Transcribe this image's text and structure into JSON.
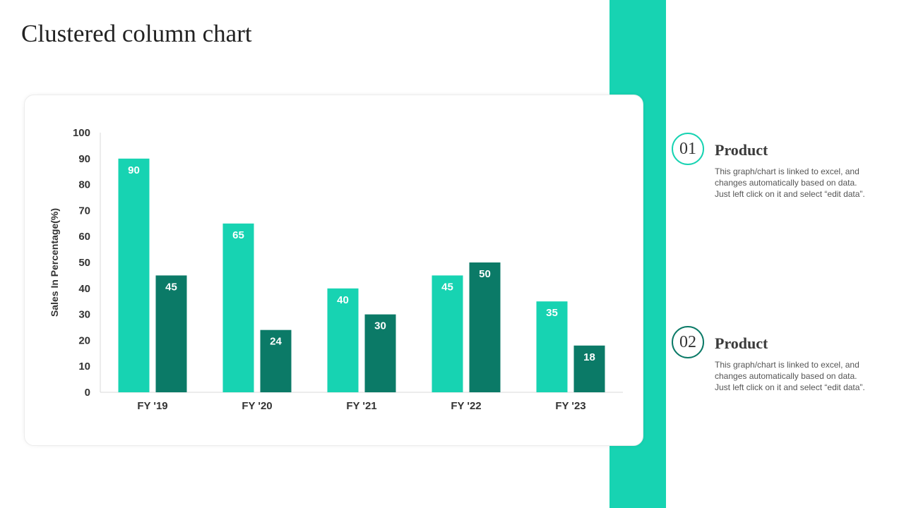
{
  "page": {
    "title": "Clustered column chart",
    "accent_color": "#17d3b2"
  },
  "chart_data": {
    "type": "bar",
    "title": "",
    "xlabel": "",
    "ylabel": "Sales In Percentage(%)",
    "ylim": [
      0,
      100
    ],
    "yticks": [
      0,
      10,
      20,
      30,
      40,
      50,
      60,
      70,
      80,
      90,
      100
    ],
    "categories": [
      "FY '19",
      "FY '20",
      "FY '21",
      "FY '22",
      "FY '23"
    ],
    "series": [
      {
        "color": "#17d3b2",
        "values": [
          90,
          65,
          40,
          45,
          35
        ]
      },
      {
        "color": "#0b7a67",
        "values": [
          45,
          24,
          30,
          50,
          18
        ]
      }
    ],
    "grid": false,
    "legend": "none",
    "data_labels": true
  },
  "products": [
    {
      "number": "01",
      "title": "Product",
      "description": "This graph/chart is linked to excel, and changes automatically based on data. Just left click on it and select “edit data”."
    },
    {
      "number": "02",
      "title": "Product",
      "description": "This graph/chart is linked to excel, and changes automatically based on data. Just left click on it and select “edit data”."
    }
  ]
}
